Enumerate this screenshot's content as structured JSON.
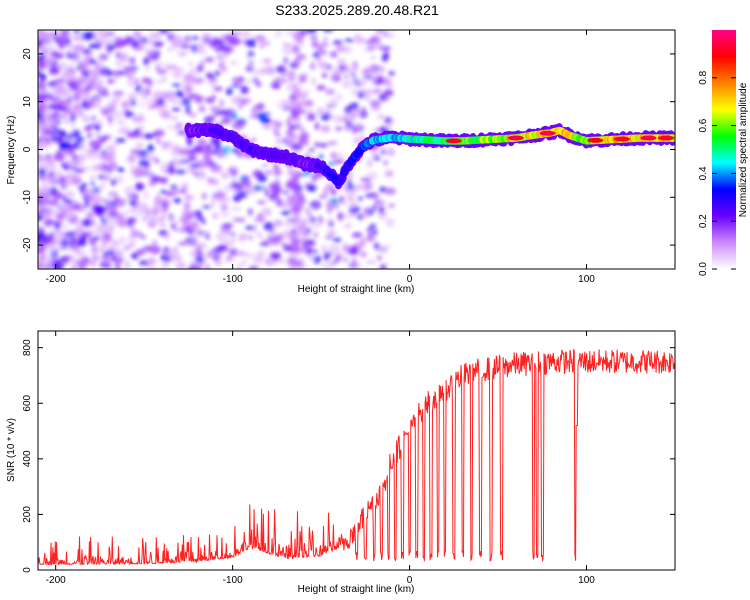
{
  "title": "S233.2025.289.20.48.R21",
  "chart_data": [
    {
      "type": "heatmap",
      "name": "spectrogram",
      "xlabel": "Height of straight line (km)",
      "ylabel": "Frequency (Hz)",
      "xlim": [
        -210,
        150
      ],
      "ylim": [
        -25,
        25
      ],
      "x_ticks": [
        -200,
        -100,
        0,
        100
      ],
      "y_ticks": [
        -20,
        -10,
        0,
        10,
        20
      ],
      "x_tick_labels": [
        "-200",
        "-100",
        "0",
        "100"
      ],
      "y_tick_labels": [
        "-20",
        "-10",
        "0",
        "10",
        "20"
      ],
      "colorbar": {
        "label": "Normalized spectral amplitude",
        "range": [
          0,
          1
        ],
        "ticks": [
          0.0,
          0.2,
          0.4,
          0.6,
          0.8
        ],
        "tick_labels": [
          "0.0",
          "0.2",
          "0.4",
          "0.6",
          "0.8"
        ],
        "colors": [
          "#ffffff",
          "#cc88ff",
          "#6a00ff",
          "#0000ff",
          "#00ffff",
          "#00ff00",
          "#ffff00",
          "#ff8000",
          "#ff0000",
          "#ff0088"
        ]
      },
      "ridge": {
        "x": [
          -120,
          -110,
          -100,
          -90,
          -80,
          -70,
          -60,
          -50,
          -45,
          -40,
          -35,
          -30,
          -25,
          -20,
          -10,
          0,
          10,
          20,
          30,
          40,
          50,
          60,
          70,
          80,
          85,
          90,
          95,
          100,
          110,
          120,
          130,
          150
        ],
        "y": [
          4,
          4,
          2.5,
          0,
          -1,
          -1.5,
          -3,
          -3.5,
          -5,
          -7,
          -3.5,
          -1,
          1,
          2,
          2.5,
          2.2,
          2.0,
          1.8,
          1.8,
          2.0,
          2.2,
          2.4,
          3.0,
          3.5,
          4.0,
          3.0,
          2.4,
          1.8,
          2.0,
          2.2,
          2.4,
          2.4
        ],
        "amplitude": [
          0.25,
          0.3,
          0.3,
          0.3,
          0.3,
          0.3,
          0.25,
          0.3,
          0.35,
          0.35,
          0.35,
          0.4,
          0.45,
          0.5,
          0.5,
          0.55,
          0.6,
          0.65,
          0.7,
          0.7,
          0.75,
          0.8,
          0.8,
          0.85,
          0.85,
          0.8,
          0.75,
          0.7,
          0.8,
          0.85,
          0.85,
          0.85
        ]
      }
    },
    {
      "type": "line",
      "name": "snr",
      "xlabel": "Height of straight line (km)",
      "ylabel": "SNR (10 * v/v)",
      "xlim": [
        -210,
        150
      ],
      "ylim": [
        0,
        860
      ],
      "x_ticks": [
        -200,
        -100,
        0,
        100
      ],
      "y_ticks": [
        0,
        200,
        400,
        600,
        800
      ],
      "x_tick_labels": [
        "-200",
        "-100",
        "0",
        "100"
      ],
      "y_tick_labels": [
        "0",
        "200",
        "400",
        "600",
        "800"
      ],
      "color": "#ff2020",
      "baseline": {
        "x": [
          -210,
          -150,
          -120,
          -100,
          -90,
          -80,
          -70,
          -50,
          -40,
          -30,
          -20,
          -15,
          -10,
          -5,
          0,
          5,
          10,
          20,
          30,
          40,
          50,
          60,
          80,
          100,
          120,
          150
        ],
        "y": [
          20,
          22,
          30,
          45,
          80,
          60,
          40,
          50,
          80,
          150,
          250,
          300,
          400,
          450,
          500,
          560,
          600,
          650,
          700,
          720,
          730,
          740,
          750,
          750,
          750,
          750
        ]
      },
      "dropouts": [
        -30,
        -25,
        -20,
        -16,
        -12,
        -8,
        -4,
        0,
        4,
        8,
        12,
        16,
        20,
        25,
        30,
        35,
        40,
        46,
        52,
        70,
        72,
        75,
        94
      ]
    }
  ]
}
